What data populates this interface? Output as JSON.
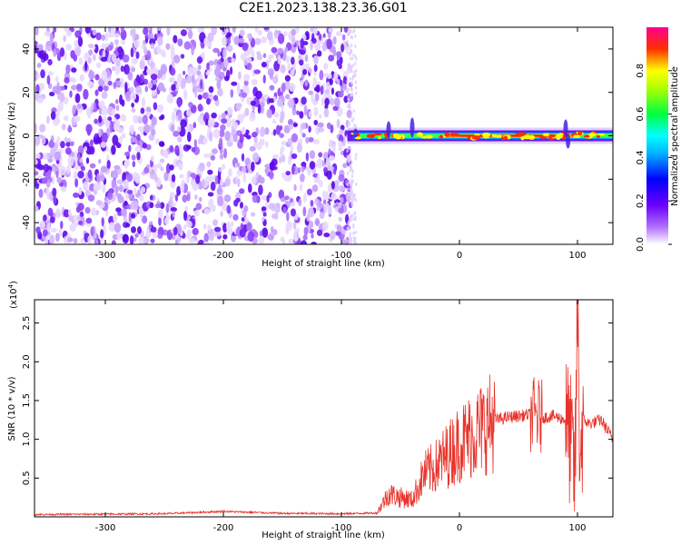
{
  "title": "C2E1.2023.138.23.36.G01",
  "chart_data": [
    {
      "type": "heatmap",
      "xlabel": "Height of straight line (km)",
      "ylabel": "Frequency (Hz)",
      "xlim": [
        -360,
        130
      ],
      "ylim": [
        -50,
        50
      ],
      "xticks": [
        -300,
        -200,
        -100,
        0,
        100
      ],
      "yticks": [
        -40,
        -20,
        0,
        20,
        40
      ],
      "noise_region_x": [
        -360,
        -92
      ],
      "signal_band_x": [
        -95,
        130
      ],
      "signal_frequency_hz": 0,
      "colorbar": {
        "label": "Normalized spectral amplitude",
        "range": [
          0.0,
          1.0
        ],
        "ticks": [
          0.0,
          0.2,
          0.4,
          0.6,
          0.8
        ],
        "colors": [
          "#ffffff",
          "#7a00ff",
          "#0000ff",
          "#00ffff",
          "#00ff00",
          "#ffff00",
          "#ff0000",
          "#ff0080"
        ]
      }
    },
    {
      "type": "line",
      "xlabel": "Height of straight line (km)",
      "ylabel": "SNR (10 * v/v)",
      "y_multiplier_label": "(x10",
      "y_multiplier_exp": "4",
      "xlim": [
        -360,
        130
      ],
      "ylim": [
        0,
        28000
      ],
      "xticks": [
        -300,
        -200,
        -100,
        0,
        100
      ],
      "yticks": [
        5000,
        10000,
        15000,
        20000,
        25000
      ],
      "ytick_labels": [
        "0.5",
        "1.0",
        "1.5",
        "2.0",
        "2.5"
      ],
      "color": "#e8332a",
      "series": [
        {
          "x": [
            -360,
            -300,
            -250,
            -200,
            -150,
            -100,
            -70,
            -60,
            -50,
            -40,
            -30,
            -20,
            -10,
            0,
            10,
            20,
            30,
            40,
            50,
            60,
            65,
            70,
            80,
            90,
            95,
            98,
            100,
            102,
            105,
            110,
            120,
            130
          ],
          "y": [
            300,
            350,
            400,
            700,
            450,
            400,
            500,
            3000,
            2500,
            2200,
            5500,
            6500,
            8000,
            9500,
            10500,
            11500,
            12500,
            12800,
            13000,
            13200,
            13000,
            12800,
            13000,
            12500,
            9000,
            5000,
            28000,
            8000,
            12500,
            12000,
            12500,
            10000
          ]
        }
      ]
    }
  ]
}
